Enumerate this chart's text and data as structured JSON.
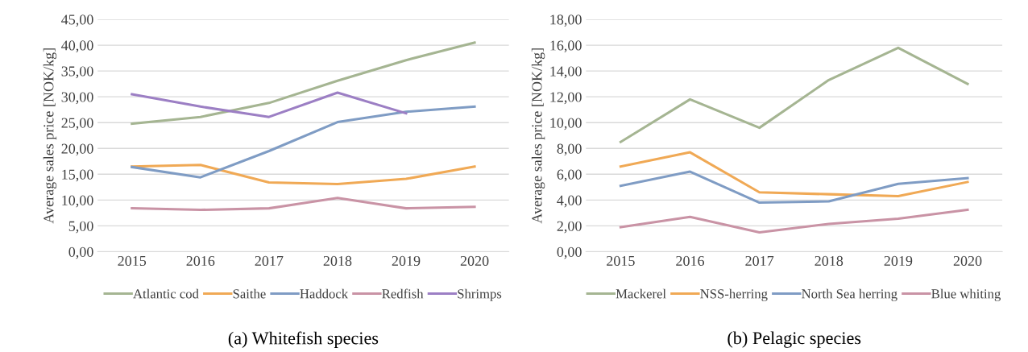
{
  "chart_data": [
    {
      "type": "line",
      "ylabel": "Average sales price [NOK/kg]",
      "annotations": [
        "(a) Whitefish species"
      ],
      "categories": [
        "2015",
        "2016",
        "2017",
        "2018",
        "2019",
        "2020"
      ],
      "ylim": [
        0,
        45
      ],
      "yticks": [
        {
          "value": 0,
          "label": "0,00"
        },
        {
          "value": 5,
          "label": "5,00"
        },
        {
          "value": 10,
          "label": "10,00"
        },
        {
          "value": 15,
          "label": "15,00"
        },
        {
          "value": 20,
          "label": "20,00"
        },
        {
          "value": 25,
          "label": "25,00"
        },
        {
          "value": 30,
          "label": "30,00"
        },
        {
          "value": 35,
          "label": "35,00"
        },
        {
          "value": 40,
          "label": "40,00"
        },
        {
          "value": 45,
          "label": "45,00"
        }
      ],
      "grid": "y",
      "legend": "bottom",
      "marker": "none",
      "line_style": "solid",
      "series": [
        {
          "name": "Atlantic cod",
          "color": "#a5b592",
          "values": [
            24.8,
            26.1,
            28.8,
            33.1,
            37.1,
            40.5
          ]
        },
        {
          "name": "Saithe",
          "color": "#f0a955",
          "values": [
            16.5,
            16.8,
            13.4,
            13.1,
            14.1,
            16.5
          ]
        },
        {
          "name": "Haddock",
          "color": "#7f9cc4",
          "values": [
            16.4,
            14.4,
            19.5,
            25.1,
            27.1,
            28.1
          ]
        },
        {
          "name": "Redfish",
          "color": "#c993a5",
          "values": [
            8.4,
            8.1,
            8.4,
            10.4,
            8.4,
            8.7
          ]
        },
        {
          "name": "Shrimps",
          "color": "#9c7fc4",
          "values": [
            30.5,
            28.1,
            26.1,
            30.8,
            26.8,
            null
          ]
        }
      ]
    },
    {
      "type": "line",
      "ylabel": "Average sales price [NOK/kg]",
      "annotations": [
        "(b) Pelagic species"
      ],
      "categories": [
        "2015",
        "2016",
        "2017",
        "2018",
        "2019",
        "2020"
      ],
      "ylim": [
        0,
        18
      ],
      "yticks": [
        {
          "value": 0,
          "label": "0,00"
        },
        {
          "value": 2,
          "label": "2,00"
        },
        {
          "value": 4,
          "label": "4,00"
        },
        {
          "value": 6,
          "label": "6,00"
        },
        {
          "value": 8,
          "label": "8,00"
        },
        {
          "value": 10,
          "label": "10,00"
        },
        {
          "value": 12,
          "label": "12,00"
        },
        {
          "value": 14,
          "label": "14,00"
        },
        {
          "value": 16,
          "label": "16,00"
        },
        {
          "value": 18,
          "label": "18,00"
        }
      ],
      "grid": "y",
      "legend": "bottom",
      "marker": "none",
      "line_style": "solid",
      "series": [
        {
          "name": "Mackerel",
          "color": "#a5b592",
          "values": [
            8.5,
            11.8,
            9.6,
            13.3,
            15.8,
            13.0
          ]
        },
        {
          "name": "NSS-herring",
          "color": "#f0a955",
          "values": [
            6.6,
            7.7,
            4.6,
            4.45,
            4.3,
            5.4
          ]
        },
        {
          "name": "North Sea herring",
          "color": "#7f9cc4",
          "values": [
            5.1,
            6.2,
            3.8,
            3.9,
            5.25,
            5.7
          ]
        },
        {
          "name": "Blue whiting",
          "color": "#c993a5",
          "values": [
            1.9,
            2.7,
            1.5,
            2.15,
            2.55,
            3.25
          ]
        }
      ]
    }
  ]
}
